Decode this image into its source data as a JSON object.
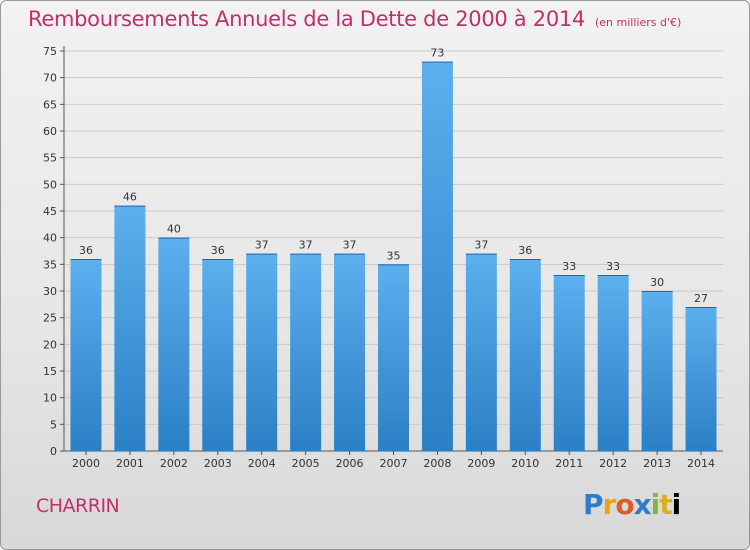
{
  "title": "Remboursements Annuels de la Dette de 2000 à 2014",
  "unit_note": "(en milliers d'€)",
  "town": "CHARRIN",
  "logo": "Proxiti",
  "colors": {
    "accent": "#c0306a",
    "bar": "#4fa3e3"
  },
  "chart_data": {
    "type": "bar",
    "categories": [
      "2000",
      "2001",
      "2002",
      "2003",
      "2004",
      "2005",
      "2006",
      "2007",
      "2008",
      "2009",
      "2010",
      "2011",
      "2012",
      "2013",
      "2014"
    ],
    "values": [
      36,
      46,
      40,
      36,
      37,
      37,
      37,
      35,
      73,
      37,
      36,
      33,
      33,
      30,
      27
    ],
    "ylim": [
      0,
      75
    ],
    "yticks": [
      0,
      5,
      10,
      15,
      20,
      25,
      30,
      35,
      40,
      45,
      50,
      55,
      60,
      65,
      70,
      75
    ],
    "grid": true,
    "data_labels": true
  }
}
